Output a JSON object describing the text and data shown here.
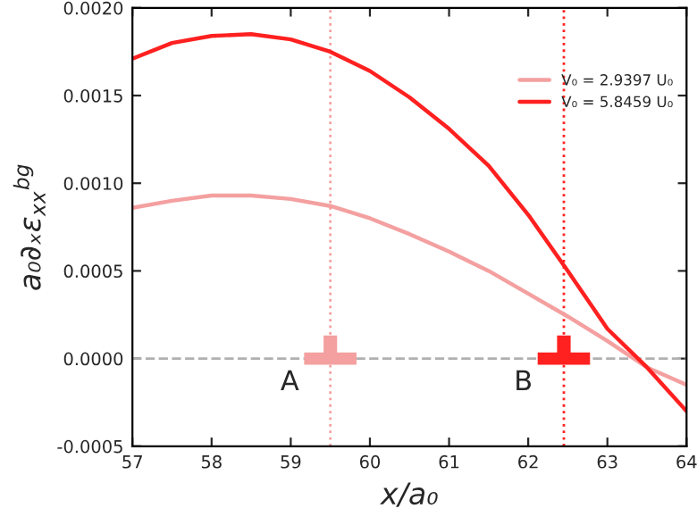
{
  "chart_data": {
    "type": "line",
    "xlabel": "x/a₀",
    "ylabel": "a₀∂ₓε$_{xx}$$^{bg}$",
    "x": [
      57,
      57.5,
      58,
      58.5,
      59,
      59.5,
      60,
      60.5,
      61,
      61.5,
      62,
      62.5,
      63,
      63.5,
      64
    ],
    "series": [
      {
        "name": "V₀ = 2.9397 U₀",
        "color": "#f4a0a0",
        "values": [
          0.00086,
          0.0009,
          0.00093,
          0.00093,
          0.00091,
          0.00087,
          0.0008,
          0.00071,
          0.00061,
          0.0005,
          0.00037,
          0.00024,
          0.0001,
          -5e-05,
          -0.00015
        ]
      },
      {
        "name": "V₀ = 5.8459 U₀",
        "color": "#ff2020",
        "values": [
          0.00171,
          0.0018,
          0.00184,
          0.00185,
          0.00182,
          0.00175,
          0.00164,
          0.00149,
          0.00131,
          0.0011,
          0.00082,
          0.0005,
          0.00017,
          -5e-05,
          -0.0003
        ]
      }
    ],
    "xlim": [
      57,
      64
    ],
    "xticks": [
      57,
      58,
      59,
      60,
      61,
      62,
      63,
      64
    ],
    "ylim": [
      -0.0005,
      0.002
    ],
    "yticks": [
      {
        "value": -0.0005,
        "label": "-0.0005"
      },
      {
        "value": 0,
        "label": "0.0000"
      },
      {
        "value": 0.0005,
        "label": "0.0005"
      },
      {
        "value": 0.001,
        "label": "0.0010"
      },
      {
        "value": 0.0015,
        "label": "0.0015"
      },
      {
        "value": 0.002,
        "label": "0.0020"
      }
    ],
    "ref_lines": [
      {
        "axis": "y",
        "value": 0,
        "color": "#b0b0b0",
        "line_style": "dashed"
      },
      {
        "axis": "x",
        "value": 59.5,
        "color": "#f4a0a0",
        "line_style": "dotted"
      },
      {
        "axis": "x",
        "value": 62.45,
        "color": "#ff2020",
        "line_style": "dotted"
      }
    ],
    "annotations": [
      "A",
      "B"
    ],
    "legend": "top right",
    "grid": false,
    "marker": "none",
    "line_style": "solid"
  }
}
